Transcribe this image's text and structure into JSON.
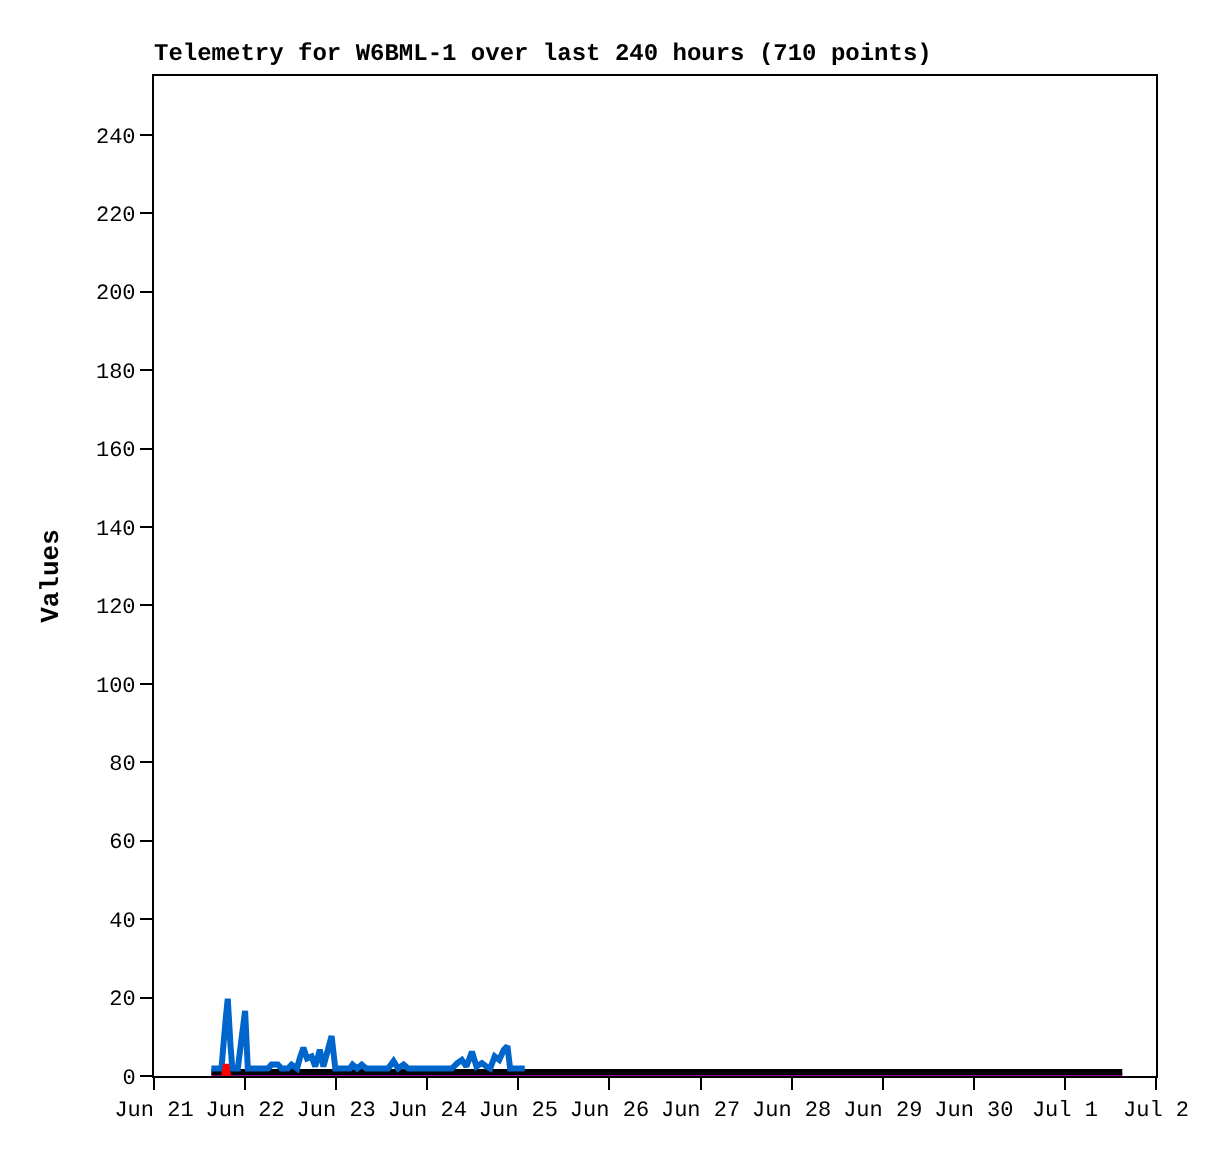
{
  "chart_data": {
    "type": "line",
    "title": "Telemetry for W6BML-1 over last 240 hours (710 points)",
    "ylabel": "Values",
    "xlim": [
      "--06-21",
      "--07-02"
    ],
    "xticks": [
      {
        "value": "--06-21",
        "label": "Jun 21"
      },
      {
        "value": "--06-22",
        "label": "Jun 22"
      },
      {
        "value": "--06-23",
        "label": "Jun 23"
      },
      {
        "value": "--06-24",
        "label": "Jun 24"
      },
      {
        "value": "--06-25",
        "label": "Jun 25"
      },
      {
        "value": "--06-26",
        "label": "Jun 26"
      },
      {
        "value": "--06-27",
        "label": "Jun 27"
      },
      {
        "value": "--06-28",
        "label": "Jun 28"
      },
      {
        "value": "--06-29",
        "label": "Jun 29"
      },
      {
        "value": "--06-30",
        "label": "Jun 30"
      },
      {
        "value": "--07-01",
        "label": "Jul 1"
      },
      {
        "value": "--07-02",
        "label": "Jul 2"
      }
    ],
    "ylim": [
      0,
      255
    ],
    "yticks": [
      0,
      20,
      40,
      60,
      80,
      100,
      120,
      140,
      160,
      180,
      200,
      220,
      240
    ],
    "marker": "none",
    "line_style": "solid",
    "series": [
      {
        "color": "#990099",
        "x": [
          "--06-21T15:07",
          "--07-01T15:07"
        ],
        "values": [
          0,
          0
        ]
      },
      {
        "color": "#000000",
        "x": [
          "--06-21T15:07",
          "--07-01T15:07"
        ],
        "values": [
          1,
          1
        ]
      },
      {
        "color": "#0066cc",
        "x": [
          "--06-21T15:07",
          "--06-21T17:46",
          "--06-21T18:14",
          "--06-21T18:58",
          "--06-21T19:26",
          "--06-21T20:10",
          "--06-21T20:38",
          "--06-21T22:05",
          "--06-21T23:02",
          "--06-22T00:00",
          "--06-22T00:43",
          "--06-22T06:00",
          "--06-22T06:58",
          "--06-22T08:38",
          "--06-22T09:36",
          "--06-22T11:17",
          "--06-22T12:14",
          "--06-22T13:41",
          "--06-22T14:24",
          "--06-22T15:22",
          "--06-22T16:19",
          "--06-22T17:31",
          "--06-22T18:29",
          "--06-22T19:41",
          "--06-22T20:38",
          "--06-22T21:36",
          "--06-22T22:48",
          "--06-22T23:46",
          "--06-23T03:36",
          "--06-23T04:19",
          "--06-23T05:31",
          "--06-23T06:43",
          "--06-23T07:55",
          "--06-23T13:41",
          "--06-23T15:07",
          "--06-23T16:19",
          "--06-23T17:46",
          "--06-23T18:58",
          "--06-24T06:29",
          "--06-24T07:55",
          "--06-24T09:07",
          "--06-24T10:19",
          "--06-24T11:46",
          "--06-24T12:58",
          "--06-24T14:24",
          "--06-24T15:36",
          "--06-24T16:34",
          "--06-24T17:46",
          "--06-24T18:58",
          "--06-24T20:10",
          "--06-24T21:07",
          "--06-24T21:50",
          "--06-25T01:41"
        ],
        "values": [
          1.9,
          1.9,
          7.2,
          15.3,
          19.7,
          7.6,
          1.9,
          1.9,
          9.3,
          16.6,
          1.9,
          1.9,
          2.9,
          2.9,
          1.9,
          1.9,
          2.9,
          1.9,
          4.5,
          7.2,
          4.5,
          5,
          2.4,
          6.7,
          2.4,
          5.9,
          10.2,
          1.9,
          1.9,
          2.9,
          1.9,
          2.9,
          1.9,
          1.9,
          3.8,
          1.9,
          2.9,
          1.9,
          1.9,
          3.3,
          4.1,
          2.4,
          6.2,
          2.4,
          3.3,
          2.4,
          1.9,
          5.0,
          4.1,
          6.7,
          7.6,
          1.9,
          1.9
        ]
      },
      {
        "color": "#ff0000",
        "x": [
          "--06-21T18:30",
          "--06-21T19:00",
          "--06-21T19:30"
        ],
        "values": [
          0,
          3,
          0
        ]
      }
    ]
  }
}
